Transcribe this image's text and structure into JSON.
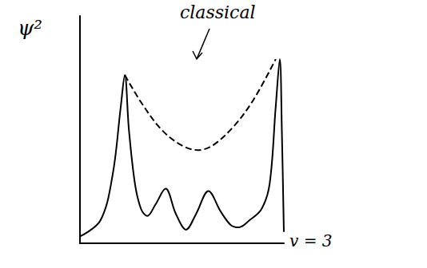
{
  "chart_data": {
    "type": "line",
    "ylabel": "ψ²",
    "xlim": [
      0,
      10
    ],
    "ylim": [
      0,
      10
    ],
    "tick_labels": false,
    "grid": false,
    "series": [
      {
        "name": "v = 3",
        "color": "#000000",
        "line_style": "solid",
        "x": [
          0,
          1,
          1.6,
          2.0,
          2.2,
          2.4,
          2.7,
          3.0,
          3.3,
          3.7,
          4.2,
          4.7,
          5.2,
          5.7,
          6.3,
          6.9,
          7.4,
          7.8,
          8.3,
          8.9,
          9.3,
          9.6,
          9.8,
          9.9,
          10
        ],
        "values": [
          0.3,
          1.0,
          3.0,
          6.0,
          7.4,
          5.0,
          2.6,
          1.5,
          1.2,
          1.7,
          2.4,
          1.3,
          0.6,
          1.3,
          2.3,
          1.4,
          0.8,
          0.7,
          1.0,
          1.5,
          2.6,
          6.0,
          8.1,
          5.0,
          0.5
        ]
      },
      {
        "name": "classical",
        "color": "#000000",
        "line_style": "dashed",
        "x": [
          2.2,
          3.0,
          4.0,
          5.0,
          5.8,
          6.5,
          7.5,
          8.5,
          9.6
        ],
        "values": [
          7.4,
          6.2,
          5.0,
          4.3,
          4.1,
          4.3,
          5.1,
          6.3,
          8.1
        ]
      }
    ]
  }
}
